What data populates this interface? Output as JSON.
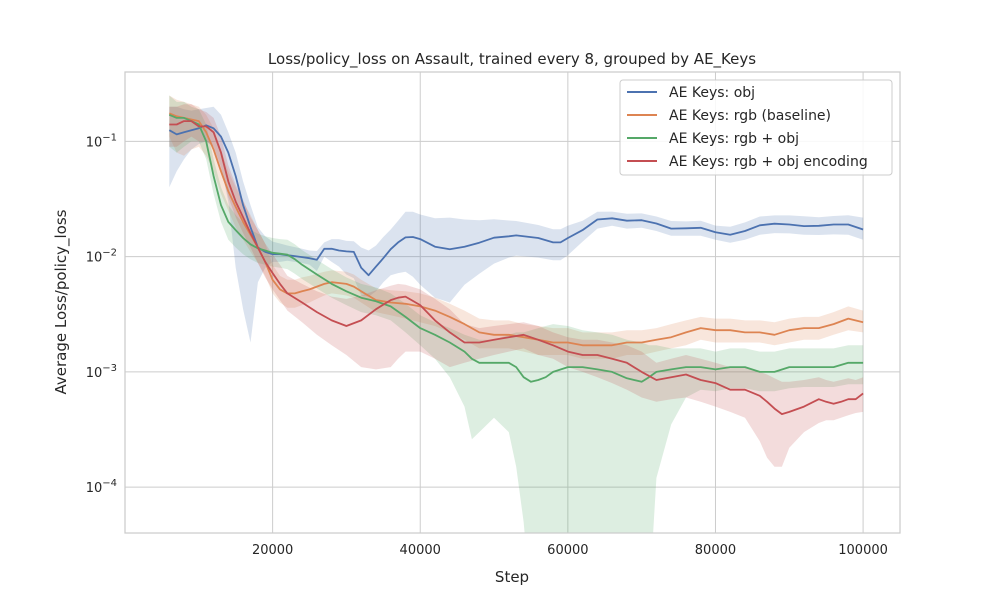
{
  "chart_data": {
    "type": "line",
    "title": "Loss/policy_loss on Assault, trained every 8, grouped by AE_Keys",
    "xlabel": "Step",
    "ylabel": "Average Loss/policy_loss",
    "xlim": [
      0,
      105000
    ],
    "ylim": [
      4e-05,
      0.4
    ],
    "y_scale": "log",
    "x_ticks": [
      20000,
      40000,
      60000,
      80000,
      100000
    ],
    "x_tick_labels": [
      "20000",
      "40000",
      "60000",
      "80000",
      "100000"
    ],
    "y_ticks": [
      0.0001,
      0.001,
      0.01,
      0.1
    ],
    "y_tick_labels": [
      {
        "base": "10",
        "exp": "−4"
      },
      {
        "base": "10",
        "exp": "−3"
      },
      {
        "base": "10",
        "exp": "−2"
      },
      {
        "base": "10",
        "exp": "−1"
      }
    ],
    "grid": true,
    "legend_position": "top-right",
    "series": [
      {
        "name": "AE Keys: obj",
        "color": "#4c72b0",
        "x": [
          6000,
          7000,
          8000,
          9000,
          10000,
          11000,
          12000,
          13000,
          14000,
          15000,
          16000,
          17000,
          18000,
          19000,
          20000,
          21000,
          22000,
          23000,
          24000,
          25000,
          26000,
          27000,
          28000,
          29000,
          30000,
          31000,
          32000,
          33000,
          34000,
          35000,
          36000,
          37000,
          38000,
          39000,
          40000,
          42000,
          44000,
          46000,
          48000,
          50000,
          52000,
          53000,
          56000,
          58000,
          59000,
          60000,
          62000,
          64000,
          66000,
          68000,
          70000,
          72000,
          74000,
          76000,
          78000,
          80000,
          82000,
          84000,
          86000,
          88000,
          90000,
          92000,
          94000,
          96000,
          98000,
          100000
        ],
        "y": [
          0.125,
          0.115,
          0.12,
          0.125,
          0.13,
          0.138,
          0.13,
          0.11,
          0.08,
          0.05,
          0.028,
          0.018,
          0.012,
          0.011,
          0.0105,
          0.0105,
          0.0103,
          0.0101,
          0.0099,
          0.0097,
          0.0094,
          0.0117,
          0.0117,
          0.0113,
          0.0111,
          0.011,
          0.008,
          0.0069,
          0.0082,
          0.0097,
          0.0116,
          0.0133,
          0.0147,
          0.0148,
          0.0142,
          0.0122,
          0.0116,
          0.0122,
          0.0132,
          0.0146,
          0.015,
          0.0153,
          0.0145,
          0.0133,
          0.0133,
          0.0145,
          0.017,
          0.021,
          0.0215,
          0.0205,
          0.0207,
          0.0194,
          0.0175,
          0.0176,
          0.0178,
          0.0163,
          0.0155,
          0.0167,
          0.0187,
          0.0193,
          0.019,
          0.0184,
          0.0185,
          0.019,
          0.019,
          0.0172
        ],
        "lower": [
          0.04,
          0.055,
          0.07,
          0.085,
          0.095,
          0.1,
          0.09,
          0.06,
          0.03,
          0.008,
          0.0035,
          0.0018,
          0.006,
          0.008,
          0.009,
          0.009,
          0.0092,
          0.009,
          0.0088,
          0.0085,
          0.0075,
          0.01,
          0.009,
          0.0082,
          0.007,
          0.0065,
          0.0046,
          0.0045,
          0.005,
          0.006,
          0.0069,
          0.0072,
          0.0074,
          0.0067,
          0.0057,
          0.0044,
          0.004,
          0.0057,
          0.0071,
          0.0087,
          0.0098,
          0.0102,
          0.0098,
          0.0093,
          0.0093,
          0.0103,
          0.0135,
          0.0175,
          0.0185,
          0.0175,
          0.0178,
          0.0167,
          0.0152,
          0.0152,
          0.0152,
          0.014,
          0.0132,
          0.014,
          0.0155,
          0.016,
          0.0159,
          0.0155,
          0.0154,
          0.0156,
          0.0155,
          0.014
        ],
        "upper": [
          0.2,
          0.2,
          0.19,
          0.185,
          0.19,
          0.195,
          0.2,
          0.17,
          0.12,
          0.08,
          0.045,
          0.028,
          0.018,
          0.015,
          0.0135,
          0.013,
          0.0125,
          0.0121,
          0.0117,
          0.0113,
          0.0112,
          0.0133,
          0.0142,
          0.0142,
          0.0137,
          0.0136,
          0.012,
          0.0113,
          0.0125,
          0.0148,
          0.0172,
          0.0205,
          0.0245,
          0.0245,
          0.0232,
          0.0215,
          0.0218,
          0.021,
          0.0207,
          0.0211,
          0.0206,
          0.0204,
          0.0188,
          0.0173,
          0.0173,
          0.0186,
          0.0205,
          0.0245,
          0.0246,
          0.0236,
          0.0237,
          0.0223,
          0.0204,
          0.0202,
          0.0205,
          0.0186,
          0.0182,
          0.0198,
          0.0223,
          0.0228,
          0.0228,
          0.0224,
          0.022,
          0.0225,
          0.0229,
          0.0218
        ]
      },
      {
        "name": "AE Keys: rgb (baseline)",
        "color": "#dd8452",
        "x": [
          6000,
          7000,
          8000,
          9000,
          10000,
          11000,
          12000,
          13000,
          14000,
          15000,
          16000,
          17000,
          18000,
          19000,
          20000,
          21000,
          22000,
          23000,
          24000,
          25000,
          26000,
          27000,
          28000,
          29000,
          30000,
          31000,
          32000,
          34000,
          36000,
          38000,
          40000,
          42000,
          44000,
          46000,
          48000,
          50000,
          52000,
          54000,
          56000,
          58000,
          60000,
          62000,
          64000,
          66000,
          68000,
          70000,
          72000,
          74000,
          76000,
          78000,
          80000,
          82000,
          84000,
          86000,
          88000,
          90000,
          92000,
          94000,
          96000,
          98000,
          100000
        ],
        "y": [
          0.175,
          0.165,
          0.16,
          0.155,
          0.15,
          0.12,
          0.085,
          0.055,
          0.037,
          0.027,
          0.02,
          0.0155,
          0.012,
          0.009,
          0.0063,
          0.0052,
          0.0048,
          0.0048,
          0.005,
          0.0052,
          0.0055,
          0.0058,
          0.006,
          0.0059,
          0.0058,
          0.0055,
          0.005,
          0.0042,
          0.004,
          0.0039,
          0.0037,
          0.0034,
          0.003,
          0.0026,
          0.0022,
          0.0021,
          0.0021,
          0.002,
          0.0019,
          0.0018,
          0.0018,
          0.0017,
          0.0017,
          0.0017,
          0.0018,
          0.0018,
          0.0019,
          0.002,
          0.0022,
          0.0024,
          0.0023,
          0.0023,
          0.0022,
          0.0022,
          0.0021,
          0.0023,
          0.0024,
          0.0024,
          0.0026,
          0.0029,
          0.0027
        ],
        "lower": [
          0.11,
          0.08,
          0.075,
          0.085,
          0.09,
          0.075,
          0.055,
          0.035,
          0.025,
          0.018,
          0.014,
          0.011,
          0.0088,
          0.0068,
          0.0048,
          0.004,
          0.0036,
          0.0036,
          0.0038,
          0.004,
          0.0043,
          0.0046,
          0.0048,
          0.0047,
          0.0046,
          0.0044,
          0.004,
          0.0033,
          0.0031,
          0.0029,
          0.0027,
          0.0025,
          0.0022,
          0.0019,
          0.0016,
          0.0016,
          0.0016,
          0.0015,
          0.0014,
          0.0014,
          0.0014,
          0.0013,
          0.0013,
          0.0013,
          0.0014,
          0.0014,
          0.0015,
          0.0016,
          0.0017,
          0.0019,
          0.0018,
          0.0018,
          0.0018,
          0.0018,
          0.0017,
          0.0018,
          0.0019,
          0.0019,
          0.0021,
          0.0023,
          0.0022
        ],
        "upper": [
          0.25,
          0.23,
          0.22,
          0.21,
          0.2,
          0.17,
          0.13,
          0.085,
          0.055,
          0.04,
          0.03,
          0.023,
          0.017,
          0.013,
          0.0085,
          0.0068,
          0.0063,
          0.0063,
          0.0066,
          0.0068,
          0.0071,
          0.0074,
          0.0076,
          0.0075,
          0.0074,
          0.007,
          0.0063,
          0.0053,
          0.0051,
          0.005,
          0.0048,
          0.0044,
          0.0039,
          0.0034,
          0.0029,
          0.0028,
          0.0028,
          0.0026,
          0.0025,
          0.0024,
          0.0024,
          0.0022,
          0.0022,
          0.0022,
          0.0023,
          0.0023,
          0.0024,
          0.0026,
          0.0028,
          0.003,
          0.0029,
          0.0029,
          0.0028,
          0.0028,
          0.0027,
          0.0029,
          0.003,
          0.003,
          0.0033,
          0.0037,
          0.0034
        ]
      },
      {
        "name": "AE Keys: rgb + obj",
        "color": "#55a868",
        "x": [
          6000,
          7000,
          8000,
          9000,
          10000,
          11000,
          12000,
          13000,
          14000,
          15000,
          16000,
          17000,
          18000,
          19000,
          20000,
          21000,
          22000,
          23000,
          24000,
          26000,
          28000,
          30000,
          32000,
          34000,
          36000,
          38000,
          40000,
          42000,
          44000,
          46000,
          47000,
          48000,
          50000,
          52000,
          53000,
          54000,
          55000,
          56000,
          57000,
          58000,
          60000,
          62000,
          64000,
          66000,
          68000,
          70000,
          71000,
          72000,
          74000,
          76000,
          78000,
          80000,
          82000,
          84000,
          86000,
          88000,
          90000,
          92000,
          94000,
          96000,
          98000,
          100000
        ],
        "y": [
          0.17,
          0.16,
          0.16,
          0.15,
          0.14,
          0.1,
          0.05,
          0.028,
          0.02,
          0.017,
          0.0145,
          0.0128,
          0.0118,
          0.0113,
          0.0108,
          0.0106,
          0.0104,
          0.0095,
          0.0085,
          0.007,
          0.0058,
          0.005,
          0.0044,
          0.0041,
          0.0037,
          0.003,
          0.0024,
          0.0021,
          0.0018,
          0.0015,
          0.0013,
          0.0012,
          0.0012,
          0.0012,
          0.0011,
          0.0009,
          0.00082,
          0.00085,
          0.0009,
          0.001,
          0.0011,
          0.0011,
          0.00105,
          0.001,
          0.00088,
          0.00082,
          0.0009,
          0.001,
          0.00105,
          0.0011,
          0.0011,
          0.00105,
          0.0011,
          0.0011,
          0.001,
          0.001,
          0.0011,
          0.0011,
          0.0011,
          0.0011,
          0.0012,
          0.0012
        ],
        "lower": [
          0.09,
          0.08,
          0.09,
          0.1,
          0.1,
          0.07,
          0.035,
          0.02,
          0.014,
          0.012,
          0.0105,
          0.0095,
          0.0088,
          0.0085,
          0.0082,
          0.008,
          0.0078,
          0.0071,
          0.0064,
          0.0053,
          0.0044,
          0.0038,
          0.0033,
          0.0031,
          0.0028,
          0.0022,
          0.0017,
          0.0013,
          0.0009,
          0.0005,
          0.00026,
          0.0003,
          0.0004,
          0.0003,
          0.00015,
          5e-05,
          1e-05,
          1e-05,
          1e-05,
          1e-05,
          1e-05,
          1e-05,
          1e-05,
          1e-05,
          1e-05,
          1e-05,
          1e-05,
          0.00012,
          0.00035,
          0.0006,
          0.0007,
          0.00068,
          0.00072,
          0.00072,
          0.00068,
          0.00068,
          0.00072,
          0.00074,
          0.00074,
          0.00074,
          0.00078,
          0.00078
        ],
        "upper": [
          0.25,
          0.22,
          0.22,
          0.2,
          0.19,
          0.14,
          0.07,
          0.04,
          0.028,
          0.023,
          0.0195,
          0.0172,
          0.0158,
          0.015,
          0.0145,
          0.0142,
          0.014,
          0.0128,
          0.0114,
          0.0094,
          0.0078,
          0.0066,
          0.0058,
          0.0054,
          0.0048,
          0.0039,
          0.0031,
          0.0027,
          0.0024,
          0.0021,
          0.002,
          0.0019,
          0.0019,
          0.0021,
          0.0022,
          0.0022,
          0.0023,
          0.0024,
          0.0025,
          0.0026,
          0.0025,
          0.0023,
          0.0022,
          0.0021,
          0.0019,
          0.0018,
          0.0017,
          0.0017,
          0.0016,
          0.0016,
          0.0016,
          0.0015,
          0.0016,
          0.0016,
          0.0015,
          0.0015,
          0.0016,
          0.0016,
          0.0016,
          0.0016,
          0.0017,
          0.0017
        ]
      },
      {
        "name": "AE Keys: rgb + obj encoding",
        "color": "#c44e52",
        "x": [
          6000,
          7000,
          8000,
          9000,
          10000,
          11000,
          12000,
          13000,
          14000,
          15000,
          16000,
          17000,
          18000,
          19000,
          20000,
          21000,
          22000,
          24000,
          26000,
          28000,
          30000,
          32000,
          34000,
          36000,
          37000,
          38000,
          40000,
          42000,
          44000,
          46000,
          48000,
          50000,
          52000,
          54000,
          56000,
          58000,
          60000,
          62000,
          64000,
          66000,
          68000,
          70000,
          72000,
          74000,
          76000,
          78000,
          80000,
          82000,
          84000,
          86000,
          87000,
          88000,
          89000,
          90000,
          92000,
          94000,
          95000,
          96000,
          97000,
          98000,
          99000,
          100000
        ],
        "y": [
          0.14,
          0.14,
          0.15,
          0.15,
          0.135,
          0.135,
          0.12,
          0.08,
          0.045,
          0.03,
          0.022,
          0.016,
          0.012,
          0.009,
          0.0072,
          0.0058,
          0.0048,
          0.004,
          0.0033,
          0.0028,
          0.0025,
          0.0028,
          0.0035,
          0.0042,
          0.0044,
          0.0045,
          0.0038,
          0.0028,
          0.0022,
          0.0018,
          0.0018,
          0.0019,
          0.002,
          0.0021,
          0.0019,
          0.0017,
          0.0015,
          0.0014,
          0.0014,
          0.0013,
          0.0012,
          0.001,
          0.00085,
          0.0009,
          0.00095,
          0.00085,
          0.0008,
          0.0007,
          0.0007,
          0.00062,
          0.00055,
          0.00048,
          0.00043,
          0.00045,
          0.0005,
          0.00058,
          0.00055,
          0.00053,
          0.00055,
          0.00058,
          0.00058,
          0.00065
        ],
        "lower": [
          0.09,
          0.09,
          0.1,
          0.11,
          0.1,
          0.1,
          0.09,
          0.058,
          0.033,
          0.022,
          0.016,
          0.012,
          0.0088,
          0.0066,
          0.0052,
          0.0042,
          0.0034,
          0.0027,
          0.0021,
          0.0017,
          0.0014,
          0.0011,
          0.00105,
          0.0011,
          0.0013,
          0.0015,
          0.0015,
          0.0013,
          0.0011,
          0.0012,
          0.0013,
          0.0014,
          0.0015,
          0.0016,
          0.0014,
          0.0013,
          0.0011,
          0.001,
          0.0009,
          0.0008,
          0.0007,
          0.0006,
          0.00055,
          0.00058,
          0.0006,
          0.00055,
          0.0005,
          0.00045,
          0.0004,
          0.00025,
          0.00018,
          0.00015,
          0.00015,
          0.00022,
          0.0003,
          0.00036,
          0.00038,
          0.00038,
          0.0004,
          0.00042,
          0.00044,
          0.00045
        ],
        "upper": [
          0.2,
          0.2,
          0.21,
          0.21,
          0.19,
          0.18,
          0.16,
          0.11,
          0.062,
          0.042,
          0.031,
          0.022,
          0.017,
          0.013,
          0.0105,
          0.0085,
          0.0068,
          0.0058,
          0.005,
          0.0045,
          0.0043,
          0.0046,
          0.0051,
          0.0056,
          0.0058,
          0.0057,
          0.0052,
          0.0043,
          0.0035,
          0.0026,
          0.0024,
          0.0025,
          0.0026,
          0.0027,
          0.0025,
          0.0022,
          0.002,
          0.0019,
          0.0019,
          0.0018,
          0.0017,
          0.0015,
          0.0012,
          0.0013,
          0.0014,
          0.0013,
          0.0012,
          0.0011,
          0.0011,
          0.001,
          0.00095,
          0.00088,
          0.00082,
          0.00082,
          0.00085,
          0.0009,
          0.00085,
          0.00082,
          0.00085,
          0.00088,
          0.00085,
          0.0009
        ]
      }
    ]
  }
}
